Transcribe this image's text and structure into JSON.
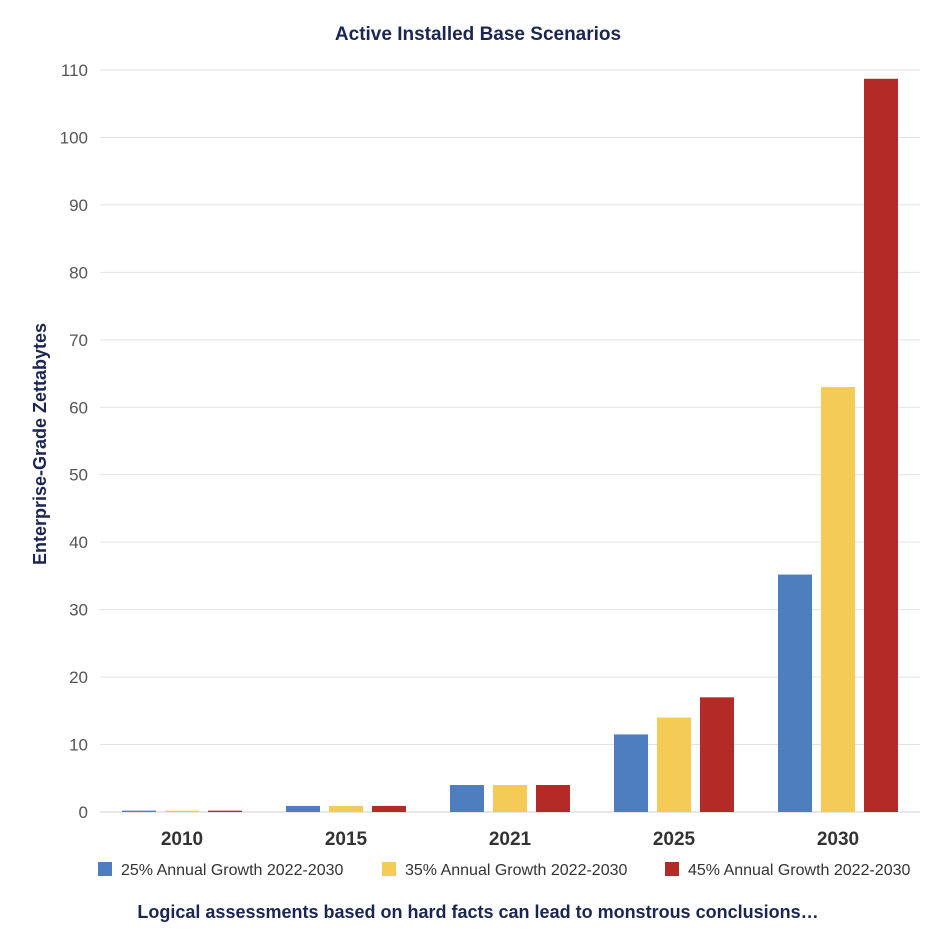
{
  "chart_data": {
    "type": "bar",
    "title": "Active Installed Base Scenarios",
    "xlabel": "",
    "ylabel": "Enterprise-Grade Zettabytes",
    "categories": [
      "2010",
      "2015",
      "2021",
      "2025",
      "2030"
    ],
    "series": [
      {
        "name": "25% Annual Growth 2022-2030",
        "color": "#4f7ebf",
        "values": [
          0.2,
          0.9,
          4.0,
          11.5,
          35.2
        ]
      },
      {
        "name": "35% Annual Growth 2022-2030",
        "color": "#f5cb58",
        "values": [
          0.2,
          0.9,
          4.0,
          14.0,
          63.0
        ]
      },
      {
        "name": "45% Annual Growth 2022-2030",
        "color": "#b32a27",
        "values": [
          0.2,
          0.9,
          4.0,
          17.0,
          108.7
        ]
      }
    ],
    "ylim": [
      0,
      110
    ],
    "yticks": [
      "0",
      "10",
      "20",
      "30",
      "40",
      "50",
      "60",
      "70",
      "80",
      "90",
      "100",
      "110"
    ],
    "grid": true,
    "legend": "bottom"
  },
  "footnote": "Logical assessments based on hard facts can lead to monstrous conclusions…"
}
